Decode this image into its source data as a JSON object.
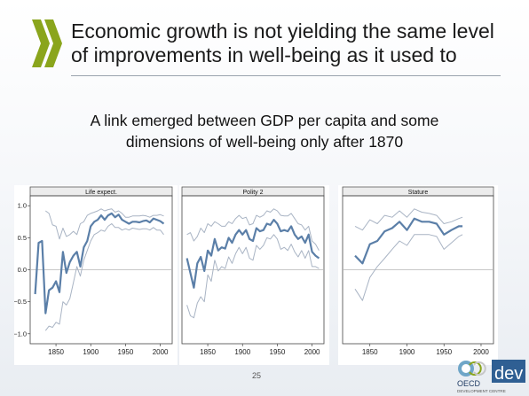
{
  "slide": {
    "title_line1": "Economic growth is not yielding the same level",
    "title_line2": "of improvements in well-being as it used to",
    "subtitle_line1": "A link emerged between GDP per capita and some",
    "subtitle_line2": "dimensions of well-being only after 1870",
    "page_number": "25",
    "logo": {
      "wordmark": "OECD",
      "suffix": "dev",
      "caption": "DEVELOPMENT CENTRE"
    }
  },
  "colors": {
    "main_line": "#5b7fa8",
    "band_line": "#a9b4c4",
    "zero_line": "#b5b5b5",
    "arrow_green": "#8aa51c"
  },
  "chart_data": [
    {
      "type": "line",
      "title": "Life expect.",
      "xlabel": "",
      "ylabel": "",
      "xlim": [
        1818,
        2012
      ],
      "ylim": [
        -1.1,
        1.1
      ],
      "xticks": [
        1850,
        1900,
        1950,
        2000
      ],
      "yticks": [
        1.0,
        0.5,
        0.0,
        -0.5,
        -1.0
      ],
      "ytick_labels": [
        "1.0",
        "0.5",
        "0.0",
        "−0.5",
        "−1.0"
      ],
      "grid": false,
      "series": [
        {
          "role": "estimate",
          "x": [
            1820,
            1825,
            1830,
            1835,
            1840,
            1845,
            1850,
            1855,
            1860,
            1865,
            1870,
            1875,
            1880,
            1885,
            1890,
            1895,
            1900,
            1905,
            1910,
            1915,
            1920,
            1925,
            1930,
            1935,
            1940,
            1945,
            1950,
            1955,
            1960,
            1965,
            1970,
            1975,
            1980,
            1985,
            1990,
            1995,
            2000,
            2005
          ],
          "y": [
            -0.38,
            0.42,
            0.45,
            -0.68,
            -0.32,
            -0.28,
            -0.18,
            -0.35,
            0.28,
            -0.05,
            0.12,
            0.22,
            0.28,
            0.05,
            0.35,
            0.45,
            0.68,
            0.75,
            0.78,
            0.85,
            0.78,
            0.85,
            0.88,
            0.82,
            0.86,
            0.78,
            0.75,
            0.72,
            0.75,
            0.75,
            0.74,
            0.76,
            0.77,
            0.74,
            0.8,
            0.78,
            0.76,
            0.72
          ]
        },
        {
          "role": "upper_bound",
          "x": [
            1835,
            1840,
            1845,
            1850,
            1855,
            1860,
            1865,
            1870,
            1875,
            1880,
            1885,
            1890,
            1895,
            1900,
            1905,
            1910,
            1915,
            1920,
            1925,
            1930,
            1935,
            1940,
            1945,
            1950,
            1955,
            1960,
            1965,
            1970,
            1975,
            1980,
            1985,
            1990,
            1995,
            2000,
            2005
          ],
          "y": [
            0.92,
            0.88,
            0.7,
            0.68,
            0.48,
            0.65,
            0.52,
            0.55,
            0.6,
            0.55,
            0.72,
            0.75,
            0.85,
            0.88,
            0.9,
            0.92,
            0.95,
            0.92,
            0.94,
            0.95,
            0.9,
            0.92,
            0.88,
            0.82,
            0.82,
            0.84,
            0.84,
            0.84,
            0.85,
            0.84,
            0.82,
            0.85,
            0.85,
            0.86,
            0.84
          ]
        },
        {
          "role": "lower_bound",
          "x": [
            1835,
            1840,
            1845,
            1850,
            1855,
            1860,
            1865,
            1870,
            1875,
            1880,
            1885,
            1890,
            1895,
            1900,
            1905,
            1910,
            1915,
            1920,
            1925,
            1930,
            1935,
            1940,
            1945,
            1950,
            1955,
            1960,
            1965,
            1970,
            1975,
            1980,
            1985,
            1990,
            1995,
            2000,
            2005
          ],
          "y": [
            -0.95,
            -0.88,
            -0.9,
            -0.82,
            -0.85,
            -0.5,
            -0.55,
            -0.45,
            -0.2,
            0.05,
            -0.1,
            0.15,
            0.3,
            0.45,
            0.55,
            0.58,
            0.62,
            0.6,
            0.68,
            0.72,
            0.66,
            0.66,
            0.62,
            0.64,
            0.62,
            0.65,
            0.64,
            0.63,
            0.64,
            0.64,
            0.62,
            0.66,
            0.62,
            0.62,
            0.55
          ]
        }
      ]
    },
    {
      "type": "line",
      "title": "Polity 2",
      "xlabel": "",
      "ylabel": "",
      "xlim": [
        1818,
        2012
      ],
      "ylim": [
        -1.1,
        1.1
      ],
      "xticks": [
        1850,
        1900,
        1950,
        2000
      ],
      "grid": false,
      "series": [
        {
          "role": "estimate",
          "x": [
            1820,
            1825,
            1830,
            1835,
            1840,
            1845,
            1850,
            1855,
            1860,
            1865,
            1870,
            1875,
            1880,
            1885,
            1890,
            1895,
            1900,
            1905,
            1910,
            1915,
            1920,
            1925,
            1930,
            1935,
            1940,
            1945,
            1950,
            1955,
            1960,
            1965,
            1970,
            1975,
            1980,
            1985,
            1990,
            1995,
            2000,
            2005,
            2010
          ],
          "y": [
            0.18,
            -0.05,
            -0.28,
            0.1,
            0.2,
            -0.02,
            0.3,
            0.22,
            0.48,
            0.3,
            0.35,
            0.33,
            0.5,
            0.42,
            0.55,
            0.62,
            0.55,
            0.62,
            0.48,
            0.45,
            0.65,
            0.6,
            0.62,
            0.72,
            0.7,
            0.78,
            0.72,
            0.6,
            0.62,
            0.6,
            0.68,
            0.55,
            0.48,
            0.52,
            0.42,
            0.55,
            0.28,
            0.22,
            0.18
          ]
        },
        {
          "role": "upper_bound",
          "x": [
            1820,
            1825,
            1830,
            1835,
            1840,
            1845,
            1850,
            1855,
            1860,
            1865,
            1870,
            1875,
            1880,
            1885,
            1890,
            1895,
            1900,
            1905,
            1910,
            1915,
            1920,
            1925,
            1930,
            1935,
            1940,
            1945,
            1950,
            1955,
            1960,
            1965,
            1970,
            1975,
            1980,
            1985,
            1990,
            1995,
            2000,
            2005,
            2010
          ],
          "y": [
            0.55,
            0.58,
            0.45,
            0.52,
            0.65,
            0.58,
            0.72,
            0.68,
            0.75,
            0.72,
            0.68,
            0.68,
            0.75,
            0.72,
            0.8,
            0.85,
            0.8,
            0.82,
            0.7,
            0.72,
            0.85,
            0.82,
            0.85,
            0.92,
            0.9,
            0.95,
            0.92,
            0.85,
            0.84,
            0.84,
            0.88,
            0.8,
            0.72,
            0.7,
            0.62,
            0.68,
            0.45,
            0.4,
            0.3
          ]
        },
        {
          "role": "lower_bound",
          "x": [
            1820,
            1825,
            1830,
            1835,
            1840,
            1845,
            1850,
            1855,
            1860,
            1865,
            1870,
            1875,
            1880,
            1885,
            1890,
            1895,
            1900,
            1905,
            1910,
            1915,
            1920,
            1925,
            1930,
            1935,
            1940,
            1945,
            1950,
            1955,
            1960,
            1965,
            1970,
            1975,
            1980,
            1985,
            1990,
            1995,
            2000,
            2005,
            2010
          ],
          "y": [
            -0.55,
            -0.72,
            -0.75,
            -0.52,
            -0.42,
            -0.5,
            -0.08,
            -0.18,
            0.15,
            -0.02,
            0.05,
            0.02,
            0.2,
            0.1,
            0.25,
            0.35,
            0.25,
            0.35,
            0.18,
            0.15,
            0.38,
            0.32,
            0.38,
            0.5,
            0.48,
            0.55,
            0.48,
            0.32,
            0.35,
            0.3,
            0.4,
            0.28,
            0.2,
            0.3,
            0.18,
            0.3,
            0.05,
            0.05,
            0.02
          ]
        }
      ]
    },
    {
      "type": "line",
      "title": "Stature",
      "xlabel": "",
      "ylabel": "",
      "xlim": [
        1818,
        2012
      ],
      "ylim": [
        -1.1,
        1.1
      ],
      "xticks": [
        1850,
        1900,
        1950,
        2000
      ],
      "grid": false,
      "series": [
        {
          "role": "estimate",
          "x": [
            1830,
            1840,
            1850,
            1860,
            1870,
            1880,
            1890,
            1900,
            1910,
            1920,
            1930,
            1940,
            1950,
            1960,
            1970,
            1975
          ],
          "y": [
            0.22,
            0.1,
            0.4,
            0.45,
            0.6,
            0.65,
            0.75,
            0.62,
            0.8,
            0.75,
            0.75,
            0.72,
            0.55,
            0.62,
            0.68,
            0.68
          ]
        },
        {
          "role": "upper_bound",
          "x": [
            1830,
            1840,
            1850,
            1860,
            1870,
            1880,
            1890,
            1900,
            1910,
            1920,
            1930,
            1940,
            1950,
            1960,
            1970,
            1975
          ],
          "y": [
            0.68,
            0.62,
            0.78,
            0.72,
            0.85,
            0.82,
            0.92,
            0.82,
            0.95,
            0.9,
            0.88,
            0.85,
            0.72,
            0.75,
            0.8,
            0.82
          ]
        },
        {
          "role": "lower_bound",
          "x": [
            1830,
            1840,
            1850,
            1860,
            1870,
            1880,
            1890,
            1900,
            1910,
            1920,
            1930,
            1940,
            1950,
            1960,
            1970,
            1975
          ],
          "y": [
            -0.3,
            -0.48,
            -0.12,
            0.05,
            0.18,
            0.32,
            0.45,
            0.38,
            0.55,
            0.55,
            0.55,
            0.52,
            0.32,
            0.42,
            0.52,
            0.55
          ]
        }
      ]
    }
  ]
}
